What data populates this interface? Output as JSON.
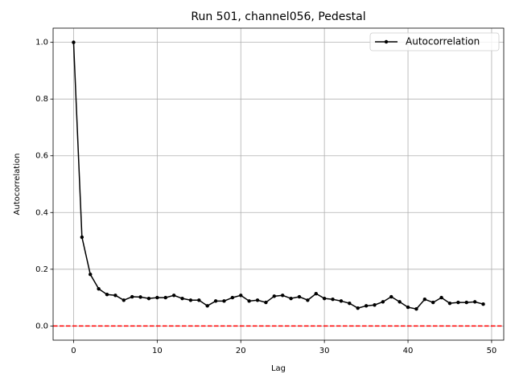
{
  "chart_data": {
    "type": "line",
    "title": "Run 501, channel056, Pedestal",
    "x_label": "Lag",
    "y_label": "Autocorrelation",
    "x": [
      0,
      1,
      2,
      3,
      4,
      5,
      6,
      7,
      8,
      9,
      10,
      11,
      12,
      13,
      14,
      15,
      16,
      17,
      18,
      19,
      20,
      21,
      22,
      23,
      24,
      25,
      26,
      27,
      28,
      29,
      30,
      31,
      32,
      33,
      34,
      35,
      36,
      37,
      38,
      39,
      40,
      41,
      42,
      43,
      44,
      45,
      46,
      47,
      48,
      49
    ],
    "series": [
      {
        "name": "Autocorrelation",
        "color": "#000000",
        "values": [
          1.0,
          0.313,
          0.182,
          0.131,
          0.111,
          0.108,
          0.091,
          0.103,
          0.102,
          0.097,
          0.1,
          0.1,
          0.108,
          0.097,
          0.091,
          0.091,
          0.071,
          0.088,
          0.088,
          0.1,
          0.108,
          0.088,
          0.091,
          0.083,
          0.105,
          0.108,
          0.097,
          0.103,
          0.091,
          0.114,
          0.097,
          0.094,
          0.088,
          0.08,
          0.063,
          0.071,
          0.074,
          0.085,
          0.103,
          0.085,
          0.066,
          0.06,
          0.094,
          0.083,
          0.1,
          0.08,
          0.083,
          0.083,
          0.085,
          0.077
        ]
      }
    ],
    "hline": 0,
    "hline_color": "#ff0000",
    "xlim": [
      -2.45,
      51.45
    ],
    "ylim": [
      -0.05,
      1.05
    ],
    "xticks": [
      0,
      10,
      20,
      30,
      40,
      50
    ],
    "yticks": [
      {
        "value": 0,
        "label": "0.0"
      },
      {
        "value": 0.2,
        "label": "0.2"
      },
      {
        "value": 0.4,
        "label": "0.4"
      },
      {
        "value": 0.6,
        "label": "0.6"
      },
      {
        "value": 0.8,
        "label": "0.8"
      },
      {
        "value": 1,
        "label": "1.0"
      }
    ],
    "grid": true,
    "legend": "upper-right"
  }
}
